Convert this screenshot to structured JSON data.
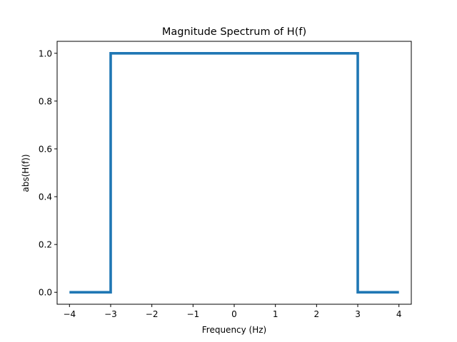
{
  "chart_data": {
    "type": "line",
    "title": "Magnitude Spectrum of H(f)",
    "xlabel": "Frequency (Hz)",
    "ylabel": "abs(H(f))",
    "xlim": [
      -4.3,
      4.3
    ],
    "ylim": [
      -0.05,
      1.05
    ],
    "x_ticks": [
      -4,
      -3,
      -2,
      -1,
      0,
      1,
      2,
      3,
      4
    ],
    "x_tick_labels": [
      "−4",
      "−3",
      "−2",
      "−1",
      "0",
      "1",
      "2",
      "3",
      "4"
    ],
    "y_ticks": [
      0.0,
      0.2,
      0.4,
      0.6,
      0.8,
      1.0
    ],
    "y_tick_labels": [
      "0.0",
      "0.2",
      "0.4",
      "0.6",
      "0.8",
      "1.0"
    ],
    "grid": false,
    "series": [
      {
        "color": "#1f77b4",
        "x": [
          -4,
          -3,
          -3,
          3,
          3,
          4
        ],
        "y": [
          0,
          0,
          1,
          1,
          0,
          0
        ]
      }
    ]
  }
}
